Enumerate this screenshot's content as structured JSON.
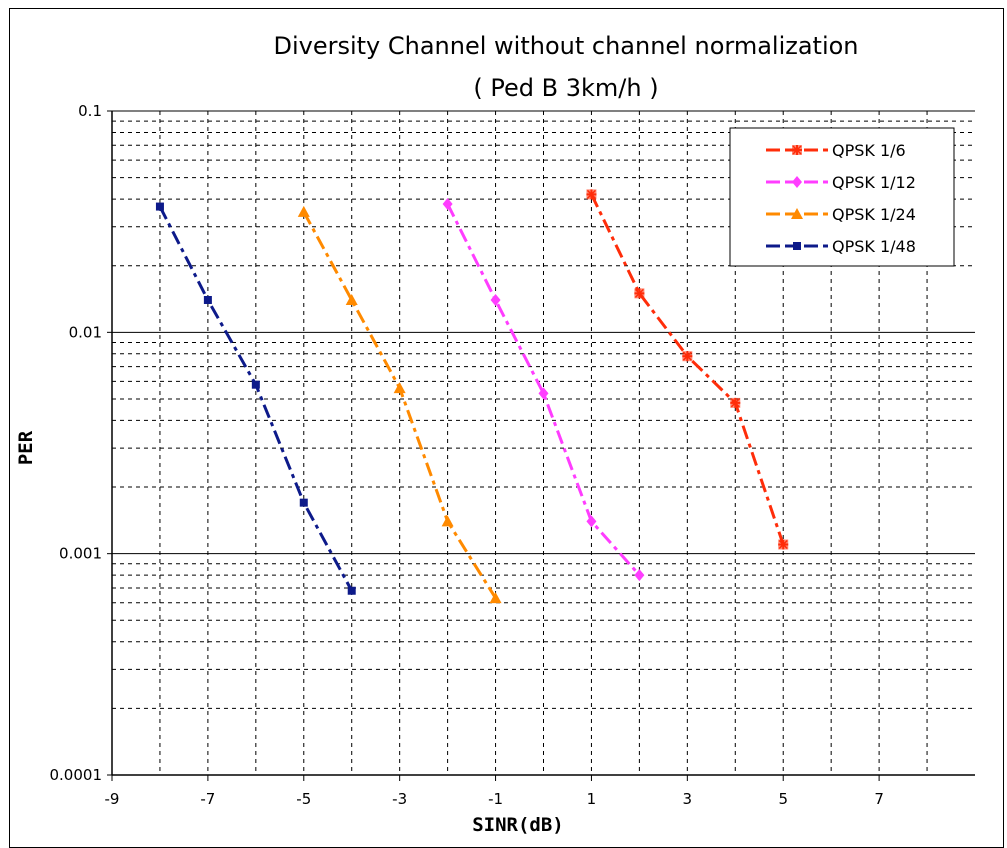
{
  "chart_data": {
    "type": "line",
    "title": "Diversity  Channel  without  channel  normalization",
    "subtitle": "(  Ped  B  3km/h  )",
    "xlabel": "SINR(dB)",
    "ylabel": "PER",
    "xlim": [
      -9,
      9
    ],
    "ylim": [
      0.0001,
      0.1
    ],
    "yscale": "log",
    "x_ticks": [
      "-9",
      "-7",
      "-5",
      "-3",
      "-1",
      "1",
      "3",
      "5",
      "7"
    ],
    "y_ticks": [
      "0.1",
      "0.01",
      "0.001",
      "0.0001"
    ],
    "grid": true,
    "legend_position": "top-right",
    "series": [
      {
        "name": "QPSK 1/6",
        "color": "#ff2d0a",
        "marker": "asterisk",
        "x": [
          1,
          2,
          3,
          4,
          5
        ],
        "y": [
          0.042,
          0.015,
          0.0078,
          0.0048,
          0.0011
        ]
      },
      {
        "name": "QPSK 1/12",
        "color": "#ff3dff",
        "marker": "diamond",
        "x": [
          -2,
          -1,
          0,
          1,
          2
        ],
        "y": [
          0.038,
          0.014,
          0.0053,
          0.0014,
          0.0008
        ]
      },
      {
        "name": "QPSK 1/24",
        "color": "#ff8a00",
        "marker": "triangle",
        "x": [
          -5,
          -4,
          -3,
          -2,
          -1
        ],
        "y": [
          0.035,
          0.014,
          0.0056,
          0.0014,
          0.00063
        ]
      },
      {
        "name": "QPSK 1/48",
        "color": "#0d1a8a",
        "marker": "square",
        "x": [
          -8,
          -7,
          -6,
          -5,
          -4
        ],
        "y": [
          0.037,
          0.014,
          0.0058,
          0.0017,
          0.00068
        ]
      }
    ]
  }
}
